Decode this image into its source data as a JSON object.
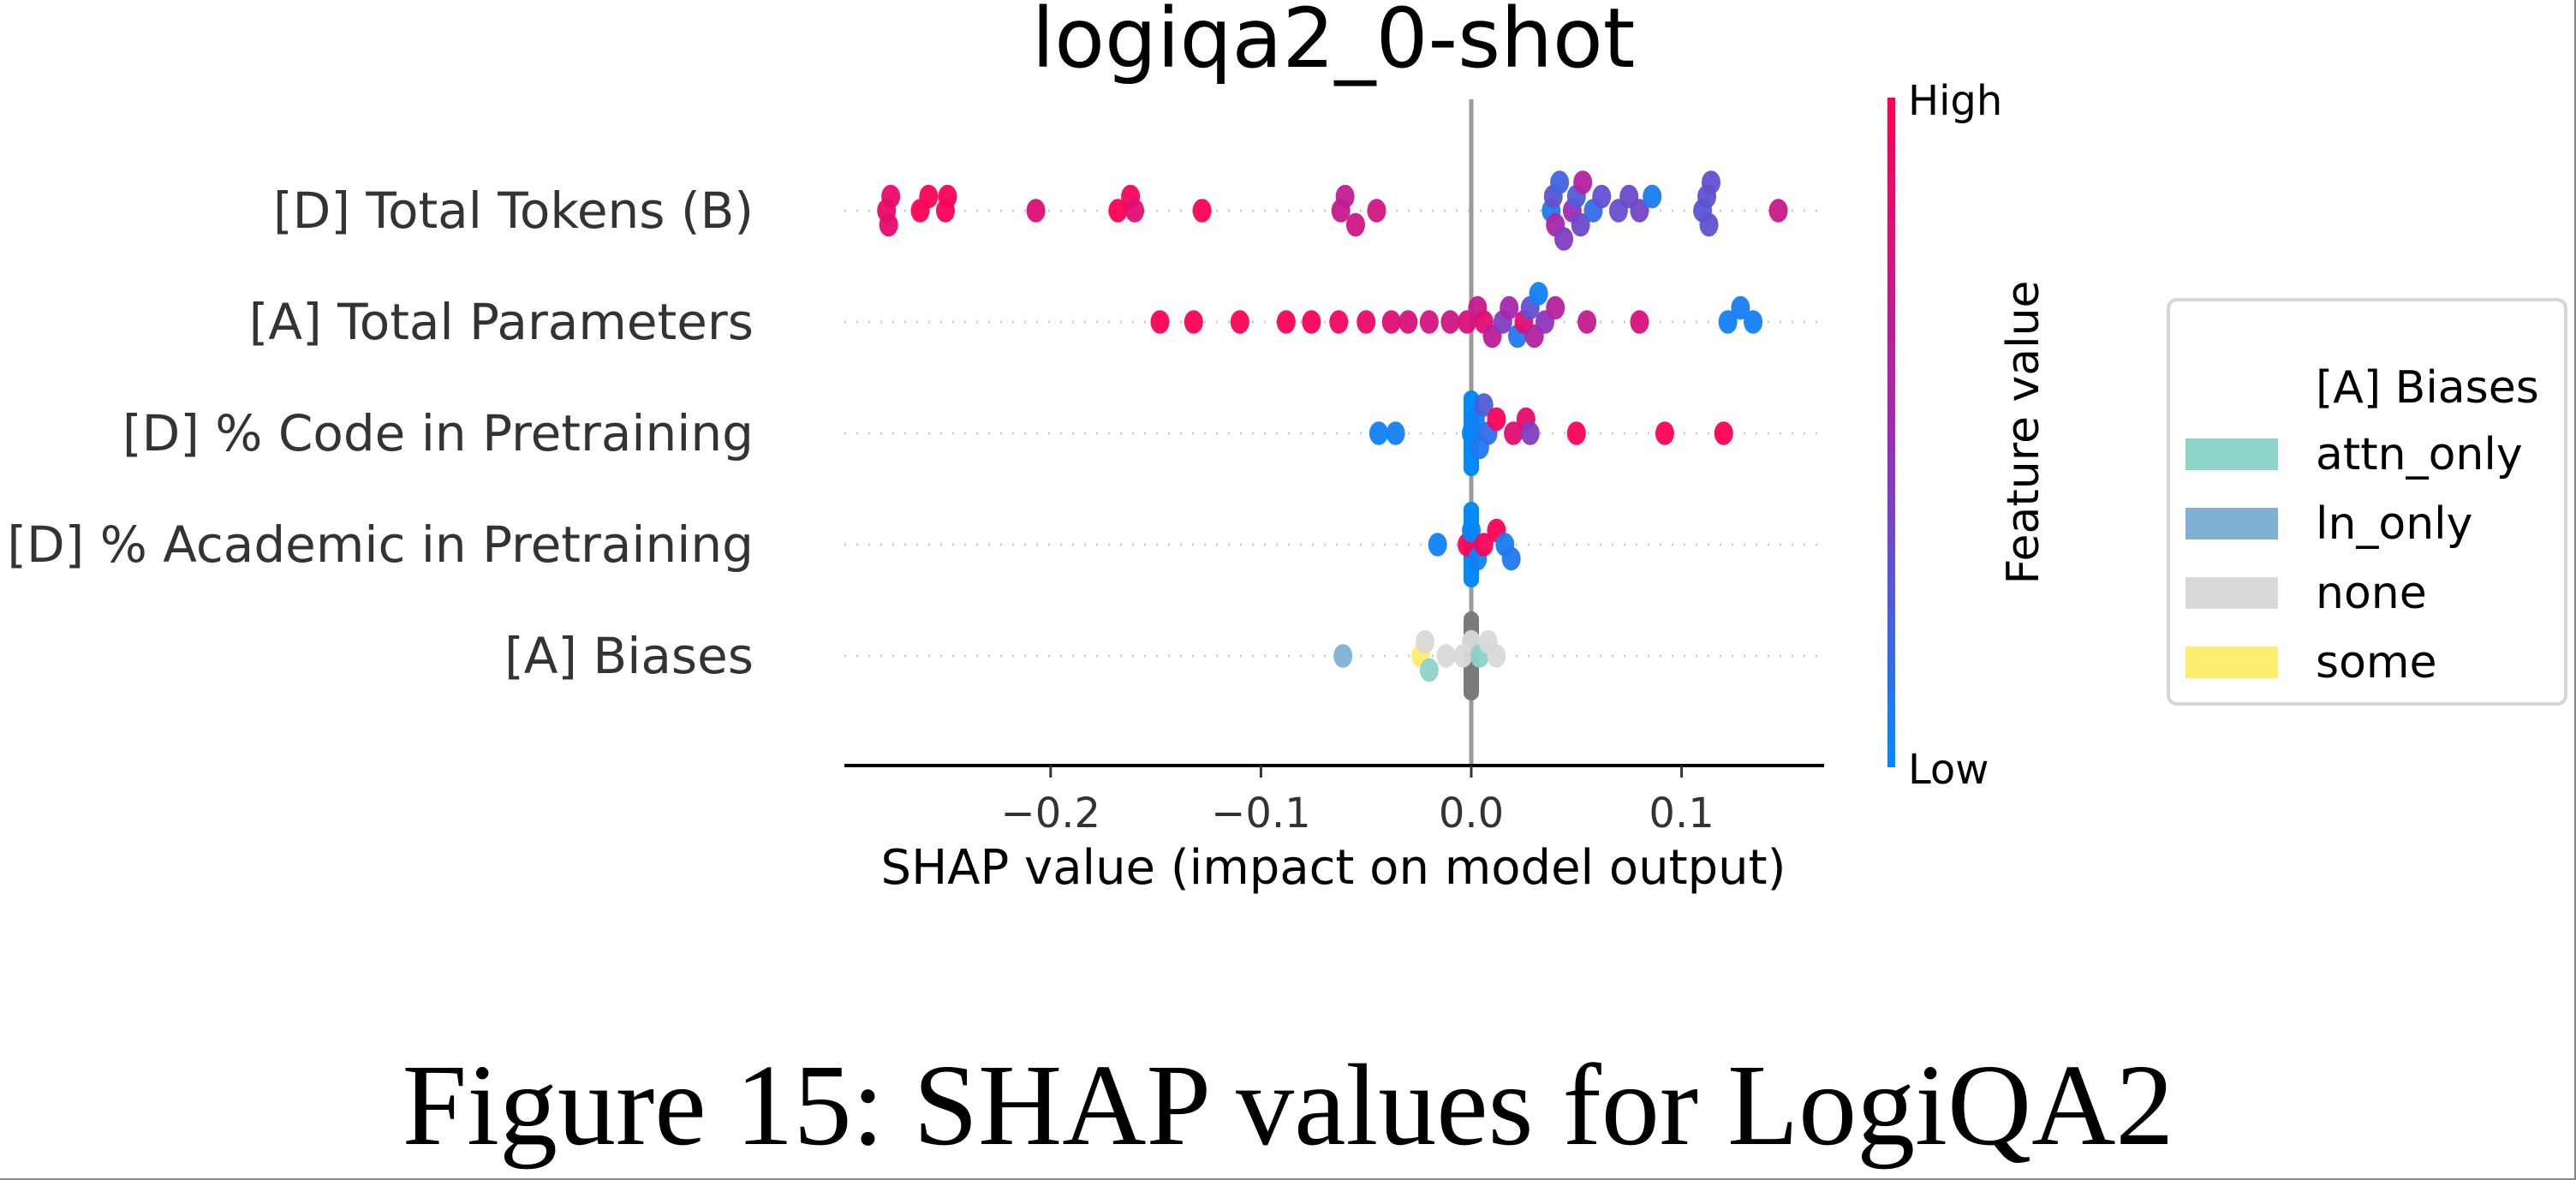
{
  "chart_data": {
    "type": "scatter",
    "subtype": "shap-beeswarm",
    "title": "logiqa2_0-shot",
    "xlabel": "SHAP value (impact on model output)",
    "ylabel": "",
    "xlim": [
      -0.3,
      0.17
    ],
    "xticks": [
      -0.2,
      -0.1,
      0.0,
      0.1
    ],
    "xtick_labels": [
      "−0.2",
      "−0.1",
      "0.0",
      "0.1"
    ],
    "grid": "dotted horizontal per feature",
    "features": [
      {
        "name": "[D] Total Tokens (B)",
        "points": [
          {
            "x": -0.278,
            "v": 0.9
          },
          {
            "x": -0.276,
            "v": 0.88
          },
          {
            "x": -0.277,
            "v": 0.86
          },
          {
            "x": -0.262,
            "v": 1.0
          },
          {
            "x": -0.258,
            "v": 0.98
          },
          {
            "x": -0.25,
            "v": 0.97
          },
          {
            "x": -0.249,
            "v": 0.96
          },
          {
            "x": -0.207,
            "v": 0.82
          },
          {
            "x": -0.168,
            "v": 1.0
          },
          {
            "x": -0.162,
            "v": 0.95
          },
          {
            "x": -0.16,
            "v": 0.84
          },
          {
            "x": -0.128,
            "v": 0.99
          },
          {
            "x": -0.062,
            "v": 0.7
          },
          {
            "x": -0.06,
            "v": 0.68
          },
          {
            "x": -0.055,
            "v": 0.74
          },
          {
            "x": -0.045,
            "v": 0.76
          },
          {
            "x": 0.038,
            "v": 0.1
          },
          {
            "x": 0.039,
            "v": 0.3
          },
          {
            "x": 0.04,
            "v": 0.55
          },
          {
            "x": 0.042,
            "v": 0.2
          },
          {
            "x": 0.044,
            "v": 0.4
          },
          {
            "x": 0.048,
            "v": 0.5
          },
          {
            "x": 0.05,
            "v": 0.25
          },
          {
            "x": 0.052,
            "v": 0.35
          },
          {
            "x": 0.053,
            "v": 0.6
          },
          {
            "x": 0.058,
            "v": 0.15
          },
          {
            "x": 0.062,
            "v": 0.3
          },
          {
            "x": 0.07,
            "v": 0.32
          },
          {
            "x": 0.075,
            "v": 0.34
          },
          {
            "x": 0.08,
            "v": 0.36
          },
          {
            "x": 0.086,
            "v": 0.08
          },
          {
            "x": 0.11,
            "v": 0.28
          },
          {
            "x": 0.112,
            "v": 0.3
          },
          {
            "x": 0.113,
            "v": 0.29
          },
          {
            "x": 0.114,
            "v": 0.31
          },
          {
            "x": 0.146,
            "v": 0.72
          }
        ]
      },
      {
        "name": "[A] Total Parameters",
        "points": [
          {
            "x": -0.148,
            "v": 0.99
          },
          {
            "x": -0.132,
            "v": 0.98
          },
          {
            "x": -0.11,
            "v": 0.97
          },
          {
            "x": -0.088,
            "v": 0.96
          },
          {
            "x": -0.076,
            "v": 0.97
          },
          {
            "x": -0.063,
            "v": 0.92
          },
          {
            "x": -0.05,
            "v": 0.88
          },
          {
            "x": -0.038,
            "v": 0.82
          },
          {
            "x": -0.03,
            "v": 0.8
          },
          {
            "x": -0.02,
            "v": 0.78
          },
          {
            "x": -0.01,
            "v": 0.74
          },
          {
            "x": -0.002,
            "v": 0.8
          },
          {
            "x": 0.003,
            "v": 0.7
          },
          {
            "x": 0.006,
            "v": 0.85
          },
          {
            "x": 0.01,
            "v": 0.65
          },
          {
            "x": 0.015,
            "v": 0.4
          },
          {
            "x": 0.018,
            "v": 0.55
          },
          {
            "x": 0.022,
            "v": 0.1
          },
          {
            "x": 0.025,
            "v": 0.85
          },
          {
            "x": 0.028,
            "v": 0.3
          },
          {
            "x": 0.03,
            "v": 0.6
          },
          {
            "x": 0.032,
            "v": 0.05
          },
          {
            "x": 0.035,
            "v": 0.45
          },
          {
            "x": 0.04,
            "v": 0.62
          },
          {
            "x": 0.055,
            "v": 0.7
          },
          {
            "x": 0.08,
            "v": 0.8
          },
          {
            "x": 0.122,
            "v": 0.05
          },
          {
            "x": 0.128,
            "v": 0.07
          },
          {
            "x": 0.134,
            "v": 0.06
          }
        ]
      },
      {
        "name": "[D] % Code in Pretraining",
        "points": [
          {
            "x": -0.044,
            "v": 0.05
          },
          {
            "x": -0.036,
            "v": 0.06
          },
          {
            "x": 0.0,
            "v": 0.02
          },
          {
            "x": 0.002,
            "v": 0.05
          },
          {
            "x": 0.004,
            "v": 0.1
          },
          {
            "x": 0.006,
            "v": 0.25
          },
          {
            "x": 0.008,
            "v": 0.15
          },
          {
            "x": 0.012,
            "v": 0.95
          },
          {
            "x": 0.02,
            "v": 0.85
          },
          {
            "x": 0.026,
            "v": 0.88
          },
          {
            "x": 0.028,
            "v": 0.4
          },
          {
            "x": 0.05,
            "v": 0.97
          },
          {
            "x": 0.092,
            "v": 0.98
          },
          {
            "x": 0.12,
            "v": 0.99
          }
        ]
      },
      {
        "name": "[D] % Academic in Pretraining",
        "points": [
          {
            "x": -0.016,
            "v": 0.05
          },
          {
            "x": -0.002,
            "v": 0.98
          },
          {
            "x": 0.0,
            "v": 0.02
          },
          {
            "x": 0.003,
            "v": 0.06
          },
          {
            "x": 0.006,
            "v": 0.97
          },
          {
            "x": 0.012,
            "v": 0.99
          },
          {
            "x": 0.016,
            "v": 0.08
          },
          {
            "x": 0.019,
            "v": 0.1
          }
        ]
      },
      {
        "name": "[A] Biases",
        "categorical": true,
        "points": [
          {
            "x": -0.061,
            "cat": "ln_only"
          },
          {
            "x": -0.024,
            "cat": "some"
          },
          {
            "x": -0.022,
            "cat": "none"
          },
          {
            "x": -0.02,
            "cat": "attn_only"
          },
          {
            "x": -0.012,
            "cat": "none"
          },
          {
            "x": -0.004,
            "cat": "none"
          },
          {
            "x": 0.0,
            "cat": "none"
          },
          {
            "x": 0.004,
            "cat": "attn_only"
          },
          {
            "x": 0.008,
            "cat": "none"
          },
          {
            "x": 0.012,
            "cat": "none"
          }
        ]
      }
    ],
    "colorbar": {
      "title": "Feature value",
      "high_label": "High",
      "low_label": "Low",
      "high_color": "#ff0052",
      "mid_color": "#9f2bb5",
      "low_color": "#008bfb"
    },
    "legend": {
      "title": "[A] Biases",
      "placement": "right",
      "entries": [
        {
          "label": "attn_only",
          "color": "#8dd3c7"
        },
        {
          "label": "ln_only",
          "color": "#80b1d3"
        },
        {
          "label": "none",
          "color": "#d9d9d9"
        },
        {
          "label": "some",
          "color": "#ffed6f"
        }
      ]
    }
  },
  "caption": "Figure 15: SHAP values for LogiQA2"
}
